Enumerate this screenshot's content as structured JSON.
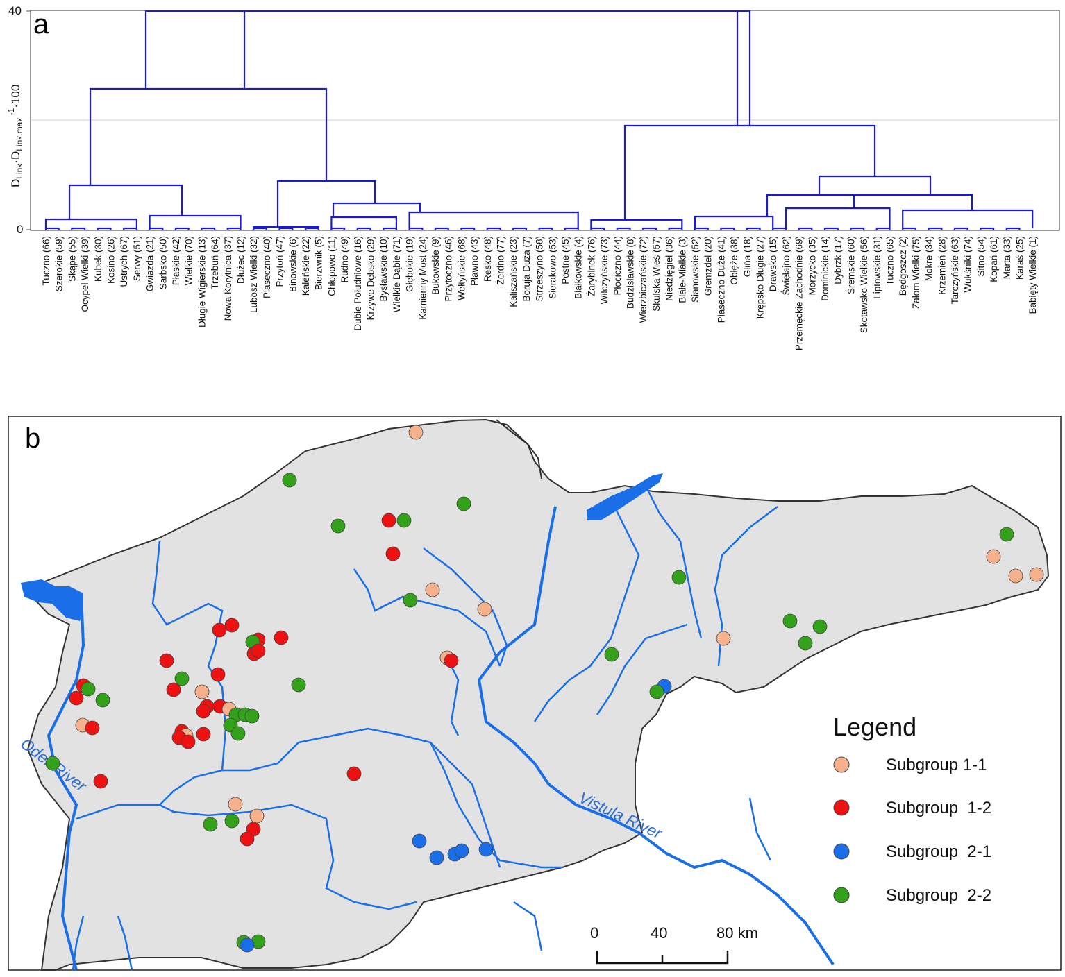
{
  "panel_a": {
    "letter": "a",
    "y_axis_label_html": "D_Link·D_Link.max^-1·100",
    "y_ticks": [
      "0",
      "40"
    ],
    "leaves": [
      "Tuczno (66)",
      "Szerokie (59)",
      "Skąpe (55)",
      "Ocypel Wielki (39)",
      "Kubek (30)",
      "Kosino (26)",
      "Ustrych (67)",
      "Serwy (51)",
      "Gwiazda (21)",
      "Sarbsko (50)",
      "Płaskie (42)",
      "Wielkie (70)",
      "Długie Wigierskie (13)",
      "Trzebuń (64)",
      "Nowa Korytnica (37)",
      "Dłużec (12)",
      "Lubosz Wielki (32)",
      "Piaseczno (40)",
      "Przytoń (47)",
      "Binowskie (6)",
      "Kaleńskie (22)",
      "Bierzwnik (5)",
      "Chłopowo (11)",
      "Rudno (49)",
      "Dubie Południowe (16)",
      "Krzywe Dębsko (29)",
      "Bysławskie (10)",
      "Wielkie Dąbie (71)",
      "Głębokie (19)",
      "Kamienny Most (24)",
      "Bukowskie (9)",
      "Przytoczno (46)",
      "Wełtyńskie (68)",
      "Pławno (43)",
      "Resko (48)",
      "Żerdno (77)",
      "Kaliszańskie (23)",
      "Boruja Duża (7)",
      "Strzeszyno (58)",
      "Sierakowo (53)",
      "Postne (45)",
      "Białkowskie (4)",
      "Żarybinek (76)",
      "Wilczyńskie (73)",
      "Płociczno (44)",
      "Budzisławskie (8)",
      "Wierzbiczańskie (72)",
      "Skulska Wieś (57)",
      "Niedzięgiel (36)",
      "Białe-Miałkie (3)",
      "Sianowskie (52)",
      "Gremzdel (20)",
      "Piaseczno Duże (41)",
      "Obłęże (38)",
      "Glińa (18)",
      "Krępsko Długie (27)",
      "Drawsko (15)",
      "Święłajno (62)",
      "Przemęckie Zachodnie (69)",
      "Morzycko (35)",
      "Dominickie (14)",
      "Dybrzk (17)",
      "Śremskie (60)",
      "Skotawsko Wielkie (56)",
      "Liptowskie (31)",
      "Tuczno (65)",
      "Będgoszcz (2)",
      "Załom Wielki (75)",
      "Mokre (34)",
      "Krzemień (28)",
      "Tarczyńskie (63)",
      "Wukśniki (74)",
      "Sitno (54)",
      "Kopań (61)",
      "Marta (33)",
      "Karaś (25)",
      "Babięty Wielkie (1)"
    ]
  },
  "panel_b": {
    "letter": "b",
    "rivers": [
      "Oder River",
      "Vistula River"
    ],
    "legend": {
      "title": "Legend",
      "items": [
        {
          "label": "Subgroup 1-1",
          "color": "#f5b08c"
        },
        {
          "label": "Subgroup  1-2",
          "color": "#ee1111"
        },
        {
          "label": "Subgroup  2-1",
          "color": "#1a6ee8"
        },
        {
          "label": "Subgroup  2-2",
          "color": "#33a11a"
        }
      ]
    },
    "scale": {
      "ticks": [
        "0",
        "40",
        "80 km"
      ]
    }
  },
  "colors": {
    "dendrogram": "#1a1ad6",
    "land": "#e2e2e2",
    "water": "#1a6ee8"
  }
}
